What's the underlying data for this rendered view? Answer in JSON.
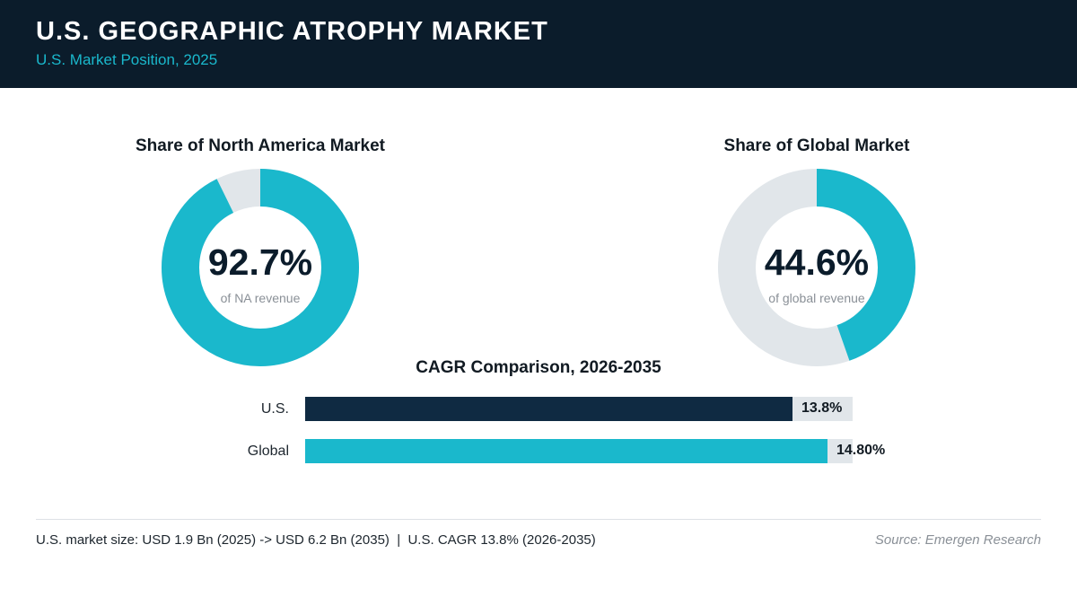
{
  "header": {
    "title": "U.S. GEOGRAPHIC ATROPHY MARKET",
    "subtitle": "U.S. Market Position, 2025"
  },
  "colors": {
    "header_bg": "#0b1c2b",
    "accent": "#1ab8cc",
    "dark_bar": "#0f2a42",
    "track": "#e1e6ea"
  },
  "chart_data": [
    {
      "type": "pie",
      "title": "Share of North America Market",
      "center_value": "92.7%",
      "center_caption": "of NA revenue",
      "value": 92.7,
      "max": 100
    },
    {
      "type": "pie",
      "title": "Share of Global Market",
      "center_value": "44.6%",
      "center_caption": "of global revenue",
      "value": 44.6,
      "max": 100
    },
    {
      "type": "bar",
      "title": "CAGR Comparison, 2026-2035",
      "categories": [
        "U.S.",
        "Global"
      ],
      "values": [
        13.8,
        14.8
      ],
      "value_labels": [
        "13.8%",
        "14.80%"
      ],
      "xlim": [
        0,
        15.5
      ]
    }
  ],
  "footer": {
    "note": "U.S. market size: USD 1.9 Bn (2025) -> USD 6.2 Bn (2035)  |  U.S. CAGR 13.8% (2026-2035)",
    "source": "Source: Emergen Research"
  }
}
